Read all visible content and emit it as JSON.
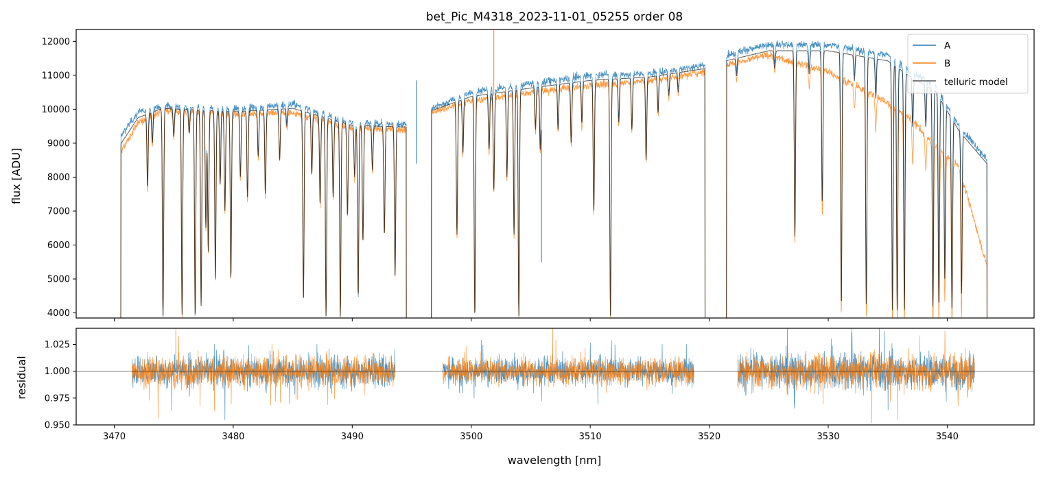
{
  "chart_data": {
    "type": "line",
    "title": "bet_Pic_M4318_2023-11-01_05255  order 08",
    "xlabel": "wavelength [nm]",
    "xlim": [
      3466.8,
      3547.3
    ],
    "xticks": [
      3470,
      3480,
      3490,
      3500,
      3510,
      3520,
      3530,
      3540
    ],
    "legend_position": "top-right",
    "flux_panel": {
      "ylabel": "flux [ADU]",
      "ylim": [
        3850,
        12350
      ],
      "yticks": [
        4000,
        5000,
        6000,
        7000,
        8000,
        9000,
        10000,
        11000,
        12000
      ],
      "segments": [
        {
          "start": 3470.5,
          "end": 3494.6,
          "continuum_A": [
            [
              3470.5,
              9200
            ],
            [
              3472,
              9900
            ],
            [
              3474,
              10100
            ],
            [
              3480,
              10000
            ],
            [
              3485,
              10150
            ],
            [
              3490,
              9600
            ],
            [
              3494.6,
              9550
            ]
          ],
          "continuum_B": [
            [
              3470.5,
              8700
            ],
            [
              3472,
              9600
            ],
            [
              3474,
              9950
            ],
            [
              3480,
              9850
            ],
            [
              3485,
              9900
            ],
            [
              3490,
              9450
            ],
            [
              3494.6,
              9400
            ]
          ]
        },
        {
          "start": 3496.6,
          "end": 3519.7,
          "continuum_A": [
            [
              3496.6,
              10000
            ],
            [
              3500,
              10500
            ],
            [
              3505,
              10750
            ],
            [
              3510,
              11000
            ],
            [
              3515,
              11050
            ],
            [
              3519.7,
              11300
            ]
          ],
          "continuum_B": [
            [
              3496.6,
              9900
            ],
            [
              3500,
              10250
            ],
            [
              3505,
              10500
            ],
            [
              3510,
              10700
            ],
            [
              3515,
              10850
            ],
            [
              3519.7,
              11100
            ]
          ]
        },
        {
          "start": 3521.4,
          "end": 3543.4,
          "continuum_A": [
            [
              3521.4,
              11600
            ],
            [
              3525,
              11900
            ],
            [
              3530,
              11900
            ],
            [
              3535,
              11600
            ],
            [
              3537,
              11100
            ],
            [
              3539,
              10700
            ],
            [
              3541,
              9500
            ],
            [
              3543.4,
              8500
            ]
          ],
          "continuum_B": [
            [
              3521.4,
              11300
            ],
            [
              3525,
              11600
            ],
            [
              3530,
              11100
            ],
            [
              3535,
              10200
            ],
            [
              3537,
              9700
            ],
            [
              3539,
              8900
            ],
            [
              3541,
              8300
            ],
            [
              3543.4,
              5300
            ]
          ]
        }
      ],
      "absorption_lines": [
        [
          3472.8,
          7700
        ],
        [
          3473.2,
          9000
        ],
        [
          3474.1,
          3900
        ],
        [
          3475.0,
          9200
        ],
        [
          3475.7,
          3950
        ],
        [
          3476.3,
          9300
        ],
        [
          3476.8,
          3900
        ],
        [
          3477.3,
          4200
        ],
        [
          3477.7,
          6500
        ],
        [
          3477.9,
          5800
        ],
        [
          3478.5,
          5000
        ],
        [
          3478.9,
          7800
        ],
        [
          3479.3,
          7000
        ],
        [
          3479.8,
          5000
        ],
        [
          3480.6,
          8000
        ],
        [
          3481.2,
          7400
        ],
        [
          3482.1,
          8600
        ],
        [
          3482.7,
          7500
        ],
        [
          3483.9,
          8500
        ],
        [
          3484.5,
          9500
        ],
        [
          3485.9,
          4400
        ],
        [
          3486.6,
          8100
        ],
        [
          3487.3,
          7200
        ],
        [
          3487.8,
          3900
        ],
        [
          3488.4,
          7400
        ],
        [
          3489.0,
          3900
        ],
        [
          3489.6,
          6900
        ],
        [
          3490.2,
          8000
        ],
        [
          3490.5,
          4500
        ],
        [
          3490.9,
          6100
        ],
        [
          3491.7,
          8200
        ],
        [
          3492.7,
          6300
        ],
        [
          3493.6,
          5100
        ],
        [
          3498.8,
          6300
        ],
        [
          3499.3,
          8700
        ],
        [
          3500.3,
          3900
        ],
        [
          3501.5,
          8800
        ],
        [
          3501.9,
          7600
        ],
        [
          3503.0,
          8000
        ],
        [
          3503.6,
          6300
        ],
        [
          3504.0,
          3900
        ],
        [
          3505.4,
          9400
        ],
        [
          3505.8,
          8800
        ],
        [
          3507.3,
          9400
        ],
        [
          3508.4,
          9000
        ],
        [
          3509.3,
          9600
        ],
        [
          3510.3,
          7000
        ],
        [
          3511.7,
          3900
        ],
        [
          3512.4,
          9600
        ],
        [
          3513.5,
          9400
        ],
        [
          3514.7,
          8500
        ],
        [
          3515.7,
          9900
        ],
        [
          3516.6,
          10400
        ],
        [
          3517.4,
          10500
        ],
        [
          3522.3,
          11000
        ],
        [
          3525.5,
          11200
        ],
        [
          3527.2,
          6200
        ],
        [
          3528.4,
          10900
        ],
        [
          3529.5,
          7100
        ],
        [
          3531.1,
          4100
        ],
        [
          3532.2,
          10500
        ],
        [
          3533.2,
          4100
        ],
        [
          3534.0,
          9900
        ],
        [
          3535.4,
          3900
        ],
        [
          3535.8,
          3900
        ],
        [
          3536.4,
          3900
        ],
        [
          3537.1,
          9000
        ],
        [
          3538.2,
          8900
        ],
        [
          3538.8,
          3900
        ],
        [
          3539.3,
          3900
        ],
        [
          3539.8,
          4700
        ],
        [
          3540.4,
          3900
        ],
        [
          3541.2,
          4300
        ]
      ],
      "spikes": [
        {
          "x": 3495.4,
          "y1": 10850,
          "y2": 8400,
          "color": "#1f77b4"
        },
        {
          "x": 3501.9,
          "y1": 12350,
          "y2": 10400,
          "color": "#ff7f0e"
        },
        {
          "x": 3505.9,
          "y1": 9400,
          "y2": 5500,
          "color": "#1f77b4"
        }
      ],
      "series": [
        {
          "name": "A",
          "color": "#1f77b4",
          "linewidth": 1.0,
          "opacity": 0.8
        },
        {
          "name": "B",
          "color": "#ff7f0e",
          "linewidth": 1.0,
          "opacity": 0.8
        },
        {
          "name": "telluric model",
          "color": "#000000",
          "linewidth": 1.2,
          "opacity": 0.6
        }
      ]
    },
    "residual_panel": {
      "ylabel": "residual",
      "ylim": [
        0.95,
        1.04
      ],
      "yticks": [
        0.95,
        0.975,
        1.0,
        1.025
      ],
      "reference_line": 1.0,
      "segments": [
        {
          "start": 3471.5,
          "end": 3493.6,
          "noise": 0.014
        },
        {
          "start": 3497.6,
          "end": 3518.7,
          "noise": 0.012
        },
        {
          "start": 3522.4,
          "end": 3542.3,
          "noise": 0.016
        }
      ]
    }
  },
  "tick_text": {
    "x": [
      "3470",
      "3480",
      "3490",
      "3500",
      "3510",
      "3520",
      "3530",
      "3540"
    ],
    "flux_y": [
      "4000",
      "5000",
      "6000",
      "7000",
      "8000",
      "9000",
      "10000",
      "11000",
      "12000"
    ],
    "resid_y": [
      "0.950",
      "0.975",
      "1.000",
      "1.025"
    ]
  },
  "legend": {
    "entries": [
      "A",
      "B",
      "telluric model"
    ]
  }
}
